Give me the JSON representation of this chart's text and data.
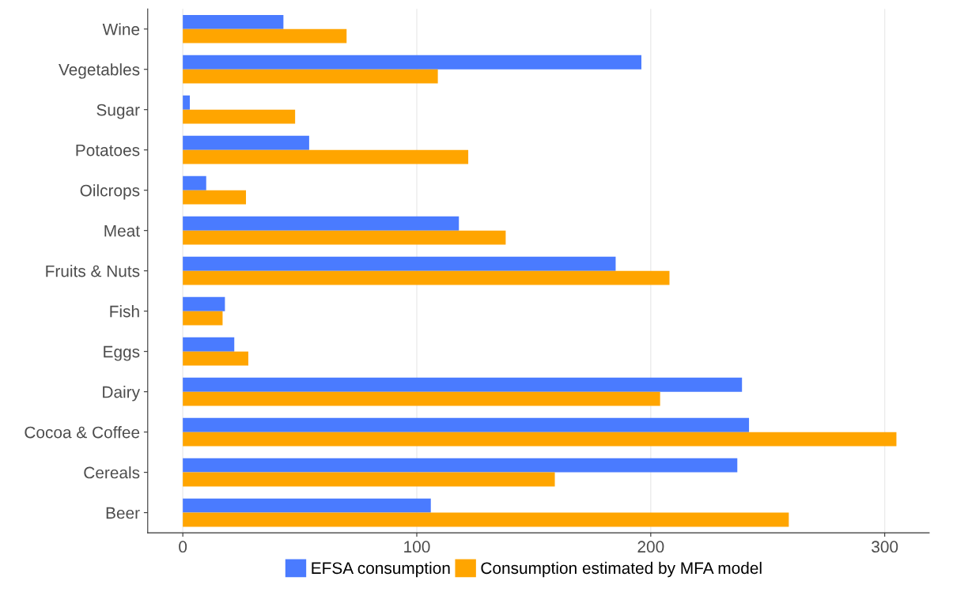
{
  "chart_data": {
    "type": "bar",
    "orientation": "horizontal",
    "categories": [
      "Wine",
      "Vegetables",
      "Sugar",
      "Potatoes",
      "Oilcrops",
      "Meat",
      "Fruits & Nuts",
      "Fish",
      "Eggs",
      "Dairy",
      "Cocoa & Coffee",
      "Cereals",
      "Beer"
    ],
    "series": [
      {
        "name": "EFSA consumption",
        "color": "#4a7bff",
        "values": [
          43,
          196,
          3,
          54,
          10,
          118,
          185,
          18,
          22,
          239,
          242,
          237,
          106
        ]
      },
      {
        "name": "Consumption estimated by MFA model",
        "color": "#ffa500",
        "values": [
          70,
          109,
          48,
          122,
          27,
          138,
          208,
          17,
          28,
          204,
          305,
          159,
          259
        ]
      }
    ],
    "xlim": [
      -15,
      319
    ],
    "xticks": [
      0,
      100,
      200,
      300
    ],
    "grid": "x",
    "legend": "bottom"
  }
}
